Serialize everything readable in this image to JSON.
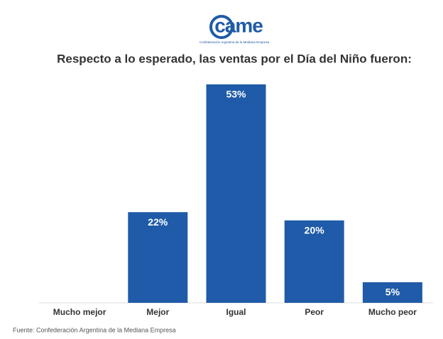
{
  "chart_data": {
    "type": "bar",
    "logo": "came",
    "logo_subtitle": "Confederación Argentina de la Mediana Empresa",
    "title": "Respecto a lo esperado, las ventas por el Día del Niño fueron:",
    "categories": [
      "Mucho mejor",
      "Mejor",
      "Igual",
      "Peor",
      "Mucho peor"
    ],
    "values": [
      0,
      22,
      53,
      20,
      5
    ],
    "value_labels": [
      null,
      "22%",
      "53%",
      "20%",
      "5%"
    ],
    "color": "#1f5ba8",
    "source": "Fuente: Confederación Argentina de la Mediana Empresa"
  }
}
